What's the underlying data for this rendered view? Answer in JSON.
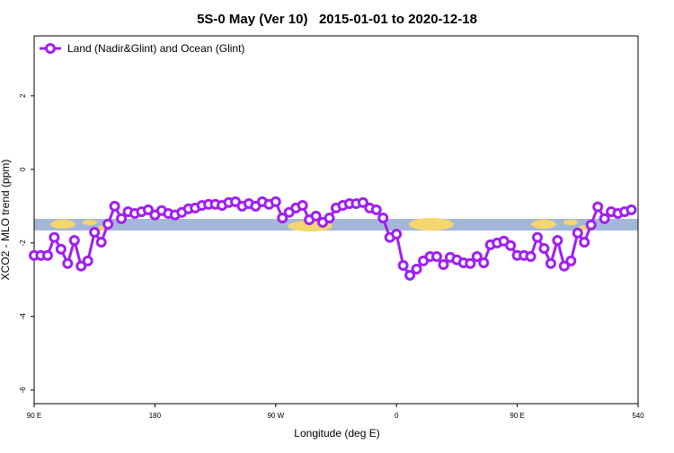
{
  "chart_data": {
    "type": "line",
    "title": "5S-0 May (Ver 10)   2015-01-01 to 2020-12-18",
    "x_label": "Longitude (deg E)",
    "y_label": "XCO2 - MLO trend (ppm)",
    "legend_position": "upper left",
    "x": [
      90,
      95,
      100,
      105,
      110,
      115,
      120,
      125,
      130,
      135,
      140,
      145,
      150,
      155,
      160,
      165,
      170,
      175,
      180,
      185,
      190,
      195,
      200,
      205,
      210,
      215,
      220,
      225,
      230,
      235,
      240,
      245,
      250,
      255,
      260,
      265,
      270,
      275,
      280,
      285,
      290,
      295,
      300,
      305,
      310,
      315,
      320,
      325,
      330,
      335,
      340,
      345,
      350,
      355,
      360,
      365,
      370,
      375,
      380,
      385,
      390,
      395,
      400,
      405,
      410,
      415,
      420,
      425,
      430,
      435,
      440,
      445,
      450,
      455,
      460,
      465,
      470,
      475,
      480,
      485,
      490,
      495,
      500,
      505,
      510,
      515,
      520,
      525,
      530,
      535
    ],
    "series": [
      {
        "name": "Land (Nadir&Glint) and Ocean (Glint)",
        "color": "#a020f0",
        "values": [
          -2.34,
          -2.34,
          -2.34,
          -1.85,
          -2.17,
          -2.56,
          -1.93,
          -2.63,
          -2.49,
          -1.71,
          -1.98,
          -1.49,
          -1.0,
          -1.34,
          -1.15,
          -1.2,
          -1.15,
          -1.1,
          -1.24,
          -1.12,
          -1.2,
          -1.24,
          -1.17,
          -1.07,
          -1.05,
          -0.98,
          -0.95,
          -0.95,
          -0.98,
          -0.9,
          -0.88,
          -1.0,
          -0.93,
          -1.0,
          -0.88,
          -0.95,
          -0.88,
          -1.32,
          -1.17,
          -1.05,
          -0.98,
          -1.37,
          -1.27,
          -1.44,
          -1.32,
          -1.05,
          -0.98,
          -0.93,
          -0.93,
          -0.9,
          -1.05,
          -1.1,
          -1.32,
          -1.85,
          -1.76,
          -2.61,
          -2.88,
          -2.71,
          -2.49,
          -2.37,
          -2.37,
          -2.59,
          -2.39,
          -2.46,
          -2.54,
          -2.56,
          -2.37,
          -2.54,
          -2.05,
          -2.0,
          -1.95,
          -2.07,
          -2.34,
          -2.34,
          -2.37,
          -1.85,
          -2.15,
          -2.56,
          -1.93,
          -2.63,
          -2.49,
          -1.73,
          -1.98,
          -1.51,
          -1.02,
          -1.34,
          -1.15,
          -1.2,
          -1.15,
          -1.1
        ]
      }
    ],
    "xlim": [
      90,
      540
    ],
    "xticks": [
      {
        "value": 90,
        "label": "90 E"
      },
      180,
      {
        "value": 270,
        "label": "90 W"
      },
      {
        "value": 360,
        "label": "0"
      },
      {
        "value": 450,
        "label": "90 E"
      },
      540
    ],
    "ylim": [
      -6.37,
      3.63
    ],
    "yticks": [
      -6,
      -4,
      -2,
      0,
      2
    ]
  }
}
